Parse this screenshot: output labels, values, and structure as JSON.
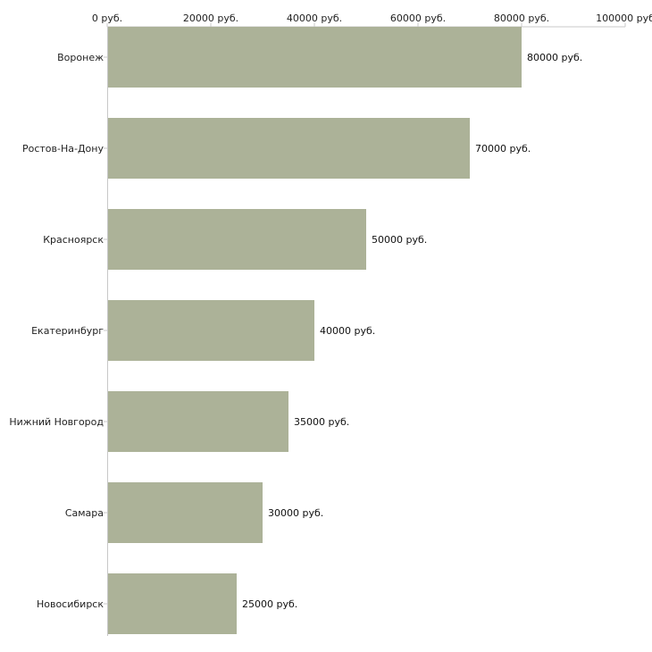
{
  "chart_data": {
    "type": "bar",
    "orientation": "horizontal",
    "title": "",
    "xlabel": "",
    "ylabel": "",
    "xlim": [
      0,
      100000
    ],
    "grid": false,
    "legend": "none",
    "currency_suffix": " руб.",
    "ticks": [
      {
        "value": 0,
        "label": "0 руб."
      },
      {
        "value": 20000,
        "label": "20000 руб."
      },
      {
        "value": 40000,
        "label": "40000 руб."
      },
      {
        "value": 60000,
        "label": "60000 руб."
      },
      {
        "value": 80000,
        "label": "80000 руб."
      },
      {
        "value": 100000,
        "label": "100000 руб"
      }
    ],
    "categories": [
      "Воронеж",
      "Ростов-На-Дону",
      "Красноярск",
      "Екатеринбург",
      "Нижний Новгород",
      "Самара",
      "Новосибирск"
    ],
    "values": [
      80000,
      70000,
      50000,
      40000,
      35000,
      30000,
      25000
    ],
    "value_labels": [
      "80000 руб.",
      "70000 руб.",
      "50000 руб.",
      "40000 руб.",
      "35000 руб.",
      "30000 руб.",
      "25000 руб."
    ],
    "bar_color": "#acb298",
    "axis_color": "#c8c8c8",
    "text_color": "#222222"
  }
}
